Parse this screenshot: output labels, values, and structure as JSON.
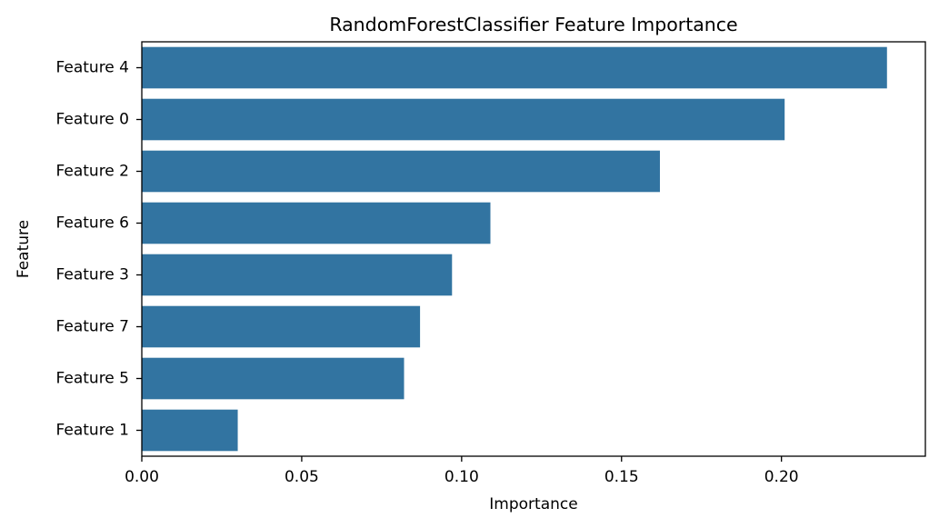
{
  "chart_data": {
    "type": "bar",
    "orientation": "horizontal",
    "title": "RandomForestClassifier Feature Importance",
    "xlabel": "Importance",
    "ylabel": "Feature",
    "categories": [
      "Feature 4",
      "Feature 0",
      "Feature 2",
      "Feature 6",
      "Feature 3",
      "Feature 7",
      "Feature 5",
      "Feature 1"
    ],
    "values": [
      0.233,
      0.201,
      0.162,
      0.109,
      0.097,
      0.087,
      0.082,
      0.03
    ],
    "xlim": [
      0,
      0.245
    ],
    "xticks": [
      0.0,
      0.05,
      0.1,
      0.15,
      0.2
    ],
    "xtick_labels": [
      "0.00",
      "0.05",
      "0.10",
      "0.15",
      "0.20"
    ],
    "grid": false,
    "legend": "none",
    "bar_color": "#3274a1"
  }
}
